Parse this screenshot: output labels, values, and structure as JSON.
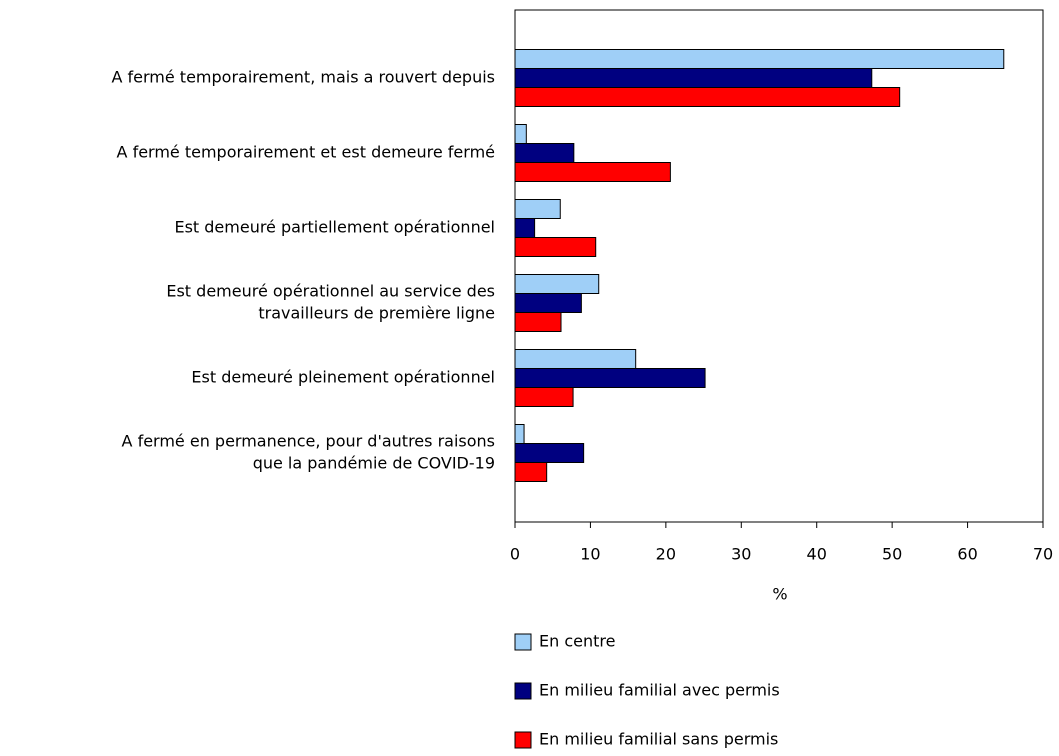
{
  "chart_data": {
    "type": "bar",
    "orientation": "horizontal",
    "categories": [
      [
        "A fermé temporairement, mais a rouvert depuis"
      ],
      [
        "A fermé temporairement et est demeure fermé"
      ],
      [
        "Est demeuré partiellement opérationnel"
      ],
      [
        "Est demeuré opérationnel au service des",
        "travailleurs de première ligne"
      ],
      [
        "Est demeuré pleinement opérationnel"
      ],
      [
        "A fermé en permanence, pour d'autres raisons",
        "que la pandémie de COVID-19"
      ]
    ],
    "series": [
      {
        "name": "En centre",
        "color": "#9fcff7",
        "values": [
          64.8,
          1.5,
          6.0,
          11.1,
          16.0,
          1.2
        ]
      },
      {
        "name": "En milieu familial avec permis",
        "color": "#000080",
        "values": [
          47.3,
          7.8,
          2.6,
          8.8,
          25.2,
          9.1
        ]
      },
      {
        "name": "En milieu familial sans permis",
        "color": "#ff0000",
        "values": [
          51.0,
          20.6,
          10.7,
          6.1,
          7.7,
          4.2
        ]
      }
    ],
    "xlabel": "%",
    "xlim": [
      0,
      70
    ],
    "xticks": [
      0,
      10,
      20,
      30,
      40,
      50,
      60,
      70
    ]
  }
}
